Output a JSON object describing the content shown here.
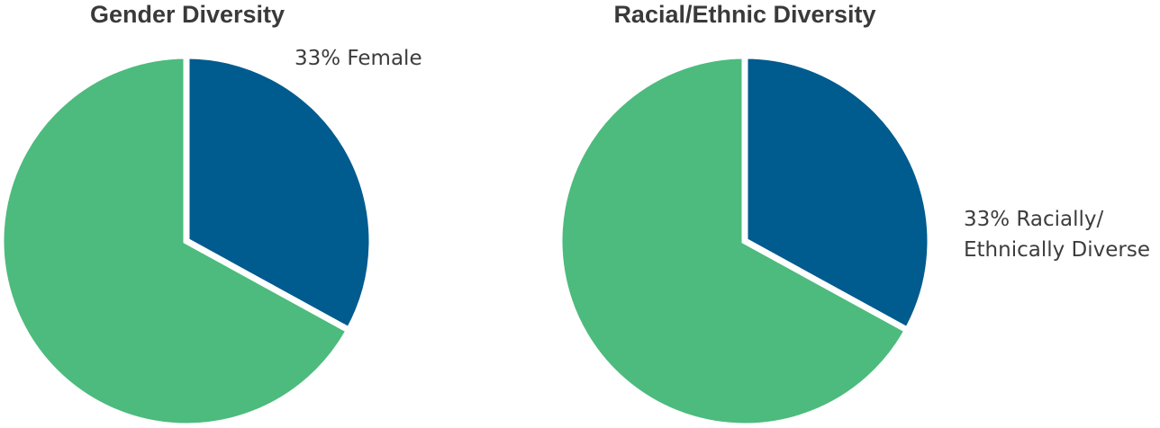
{
  "chart_data": [
    {
      "type": "pie",
      "title": "Gender Diversity",
      "slices": [
        {
          "label": "33% Female",
          "value": 33,
          "color": "#005b8f"
        },
        {
          "label": "",
          "value": 67,
          "color": "#4cbb7d"
        }
      ]
    },
    {
      "type": "pie",
      "title": "Racial/Ethnic Diversity",
      "slices": [
        {
          "label": "33% Racially/\nEthnically Diverse",
          "value": 33,
          "color": "#005b8f"
        },
        {
          "label": "",
          "value": 67,
          "color": "#4cbb7d"
        }
      ]
    }
  ]
}
